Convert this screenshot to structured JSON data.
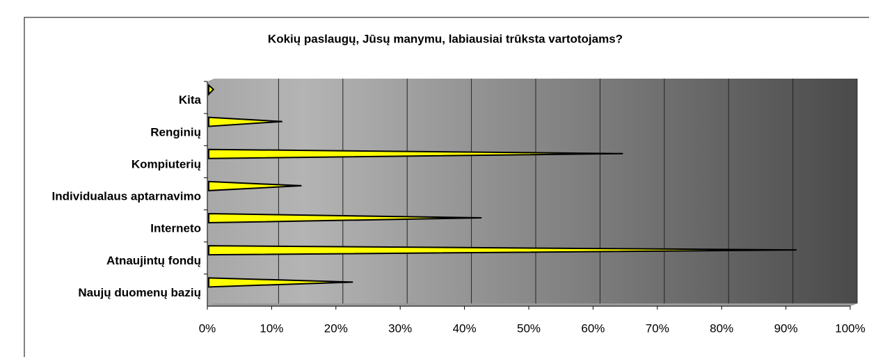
{
  "chart_data": {
    "type": "bar",
    "orientation": "horizontal",
    "title": "Kokių paslaugų, Jūsų manymu, labiausiai trūksta vartotojams?",
    "categories": [
      "Kita",
      "Renginių",
      "Kompiuterių",
      "Individualaus aptarnavimo",
      "Interneto",
      "Atnaujintų fondų",
      "Naujų duomenų bazių"
    ],
    "values": [
      0.3,
      11,
      64,
      14,
      42,
      91,
      22
    ],
    "color": "#ffff00",
    "xlim": [
      0,
      100
    ],
    "xticks": [
      {
        "value": 0,
        "label": "0%"
      },
      {
        "value": 10,
        "label": "10%"
      },
      {
        "value": 20,
        "label": "20%"
      },
      {
        "value": 30,
        "label": "30%"
      },
      {
        "value": 40,
        "label": "40%"
      },
      {
        "value": 50,
        "label": "50%"
      },
      {
        "value": 60,
        "label": "60%"
      },
      {
        "value": 70,
        "label": "70%"
      },
      {
        "value": 80,
        "label": "80%"
      },
      {
        "value": 90,
        "label": "90%"
      },
      {
        "value": 100,
        "label": "100%"
      }
    ],
    "grid": true
  }
}
